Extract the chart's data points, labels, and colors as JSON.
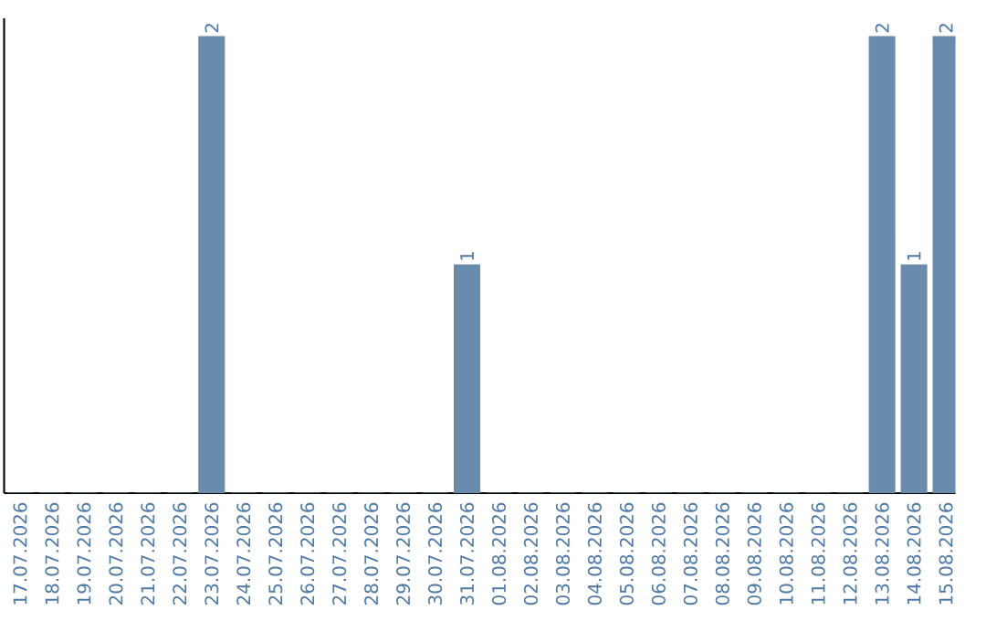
{
  "chart_data": {
    "type": "bar",
    "categories": [
      "17.07.2026",
      "18.07.2026",
      "19.07.2026",
      "20.07.2026",
      "21.07.2026",
      "22.07.2026",
      "23.07.2026",
      "24.07.2026",
      "25.07.2026",
      "26.07.2026",
      "27.07.2026",
      "28.07.2026",
      "29.07.2026",
      "30.07.2026",
      "31.07.2026",
      "01.08.2026",
      "02.08.2026",
      "03.08.2026",
      "04.08.2026",
      "05.08.2026",
      "06.08.2026",
      "07.08.2026",
      "08.08.2026",
      "09.08.2026",
      "10.08.2026",
      "11.08.2026",
      "12.08.2026",
      "13.08.2026",
      "14.08.2026",
      "15.08.2026"
    ],
    "values": [
      0,
      0,
      0,
      0,
      0,
      0,
      2,
      0,
      0,
      0,
      0,
      0,
      0,
      0,
      1,
      0,
      0,
      0,
      0,
      0,
      0,
      0,
      0,
      0,
      0,
      0,
      0,
      2,
      1,
      2
    ],
    "value_labels": [
      null,
      null,
      null,
      null,
      null,
      null,
      "2",
      null,
      null,
      null,
      null,
      null,
      null,
      null,
      "1",
      null,
      null,
      null,
      null,
      null,
      null,
      null,
      null,
      null,
      null,
      null,
      null,
      "2",
      "1",
      "2"
    ],
    "color": "#6a8cac",
    "ylim": [
      0,
      2
    ],
    "tick_labels": "x"
  }
}
